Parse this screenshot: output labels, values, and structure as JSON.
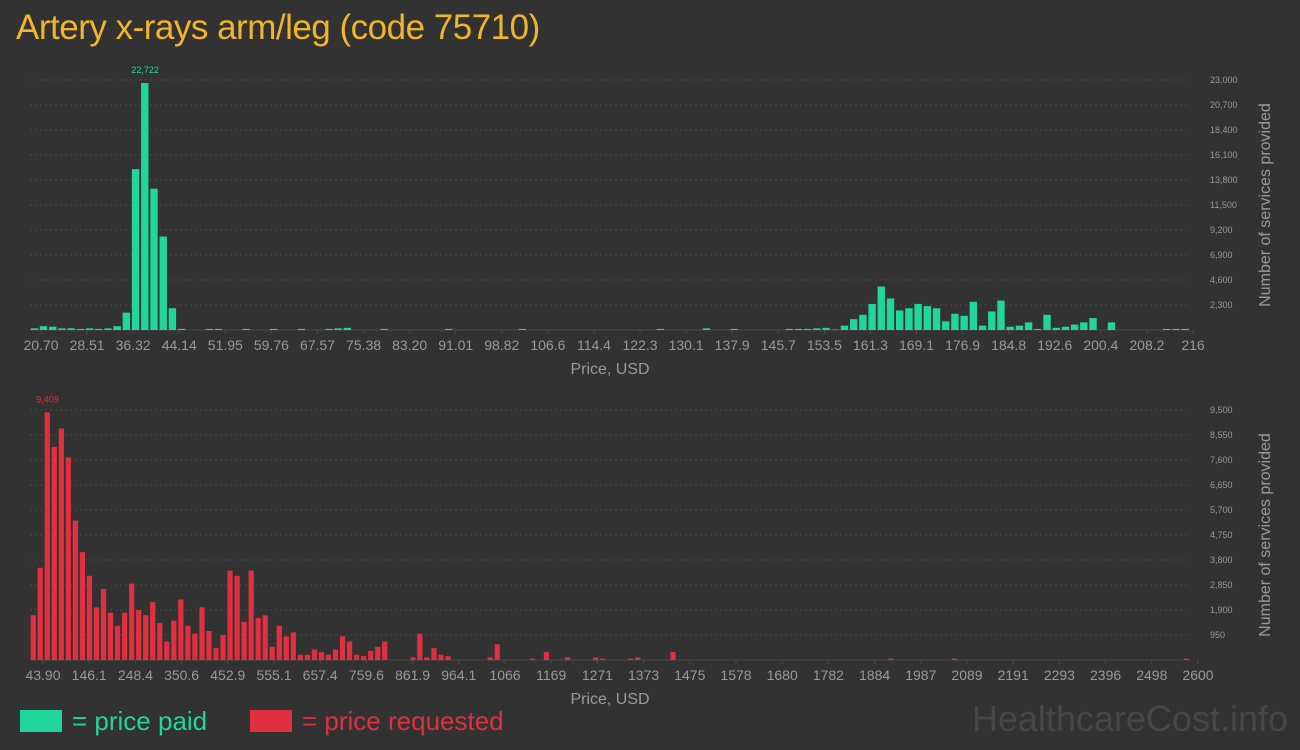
{
  "title": "Artery x-rays arm/leg (code 75710)",
  "colors": {
    "background": "#323232",
    "paid": "#20d69a",
    "requested": "#e0303f",
    "title": "#f0b52a",
    "axis_text": "#9a9a9a",
    "grid": "#4a4a4a"
  },
  "legend": {
    "paid_label": "= price paid",
    "requested_label": "= price requested"
  },
  "watermark": "HealthcareCost.info",
  "chart_data": [
    {
      "type": "bar",
      "series_name": "price paid",
      "xlabel": "Price, USD",
      "ylabel": "Number of services provided",
      "x_tick_labels": [
        "20.70",
        "28.51",
        "36.32",
        "44.14",
        "51.95",
        "59.76",
        "67.57",
        "75.38",
        "83.20",
        "91.01",
        "98.82",
        "106.6",
        "114.4",
        "122.3",
        "130.1",
        "137.9",
        "145.7",
        "153.5",
        "161.3",
        "169.1",
        "176.9",
        "184.8",
        "192.6",
        "200.4",
        "208.2",
        "216"
      ],
      "y_ticks": [
        2300,
        4600,
        6900,
        9200,
        11500,
        13800,
        16100,
        18400,
        20700,
        23000
      ],
      "y_tick_labels": [
        "2,300",
        "4,600",
        "6,900",
        "9,200",
        "11,500",
        "13,800",
        "16,100",
        "18,400",
        "20,700",
        "23,000"
      ],
      "ylim": [
        0,
        23000
      ],
      "peak_label": "22,722",
      "values": [
        150,
        350,
        300,
        150,
        150,
        100,
        150,
        100,
        150,
        350,
        1600,
        14800,
        22722,
        13000,
        8600,
        2000,
        100,
        0,
        0,
        100,
        100,
        0,
        0,
        100,
        0,
        0,
        100,
        0,
        0,
        100,
        0,
        0,
        100,
        150,
        200,
        0,
        0,
        0,
        100,
        0,
        0,
        0,
        0,
        0,
        0,
        100,
        0,
        0,
        0,
        0,
        0,
        0,
        0,
        100,
        0,
        0,
        0,
        0,
        0,
        0,
        0,
        0,
        0,
        0,
        0,
        0,
        0,
        0,
        100,
        0,
        0,
        0,
        0,
        150,
        0,
        0,
        100,
        0,
        0,
        0,
        0,
        0,
        100,
        100,
        100,
        150,
        200,
        50,
        400,
        1000,
        1400,
        2400,
        4000,
        2900,
        1800,
        2000,
        2400,
        2200,
        2000,
        800,
        1500,
        1300,
        2600,
        400,
        1700,
        2700,
        300,
        400,
        700,
        100,
        1400,
        200,
        300,
        500,
        700,
        1100,
        0,
        700,
        0,
        0,
        0,
        0,
        0,
        100,
        100,
        100
      ]
    },
    {
      "type": "bar",
      "series_name": "price requested",
      "xlabel": "Price, USD",
      "ylabel": "Number of services provided",
      "x_tick_labels": [
        "43.90",
        "146.1",
        "248.4",
        "350.6",
        "452.9",
        "555.1",
        "657.4",
        "759.6",
        "861.9",
        "964.1",
        "1066",
        "1169",
        "1271",
        "1373",
        "1475",
        "1578",
        "1680",
        "1782",
        "1884",
        "1987",
        "2089",
        "2191",
        "2293",
        "2396",
        "2498",
        "2600"
      ],
      "y_ticks": [
        950,
        1900,
        2850,
        3800,
        4750,
        5700,
        6650,
        7600,
        8550,
        9500
      ],
      "y_tick_labels": [
        "950",
        "1,900",
        "2,850",
        "3,800",
        "4,750",
        "5,700",
        "6,650",
        "7,600",
        "8,550",
        "9,500"
      ],
      "ylim": [
        0,
        9500
      ],
      "peak_label": "9,409",
      "values": [
        1700,
        3500,
        9409,
        8100,
        8800,
        7700,
        5300,
        4100,
        3200,
        2000,
        2700,
        1800,
        1300,
        1800,
        2900,
        1900,
        1700,
        2200,
        1400,
        700,
        1500,
        2300,
        1300,
        1000,
        2000,
        1100,
        450,
        950,
        3400,
        3200,
        1450,
        3400,
        1600,
        1700,
        500,
        1300,
        900,
        1050,
        200,
        200,
        400,
        300,
        200,
        400,
        900,
        700,
        200,
        150,
        350,
        500,
        700,
        0,
        0,
        0,
        100,
        1000,
        100,
        450,
        200,
        150,
        0,
        0,
        0,
        0,
        0,
        100,
        600,
        0,
        0,
        0,
        0,
        50,
        0,
        300,
        0,
        0,
        100,
        0,
        0,
        0,
        100,
        50,
        0,
        0,
        0,
        50,
        100,
        0,
        0,
        0,
        0,
        300,
        0,
        0,
        0,
        0,
        0,
        0,
        0,
        0,
        0,
        0,
        0,
        0,
        0,
        0,
        0,
        0,
        0,
        0,
        0,
        0,
        0,
        0,
        0,
        0,
        0,
        0,
        0,
        0,
        0,
        0,
        50,
        0,
        0,
        0,
        0,
        0,
        0,
        0,
        0,
        50,
        0,
        0,
        0,
        0,
        0,
        0,
        0,
        0,
        0,
        0,
        0,
        0,
        0,
        0,
        0,
        0,
        0,
        0,
        0,
        0,
        0,
        0,
        0,
        0,
        0,
        0,
        0,
        0,
        0,
        0,
        0,
        0,
        50
      ]
    }
  ]
}
